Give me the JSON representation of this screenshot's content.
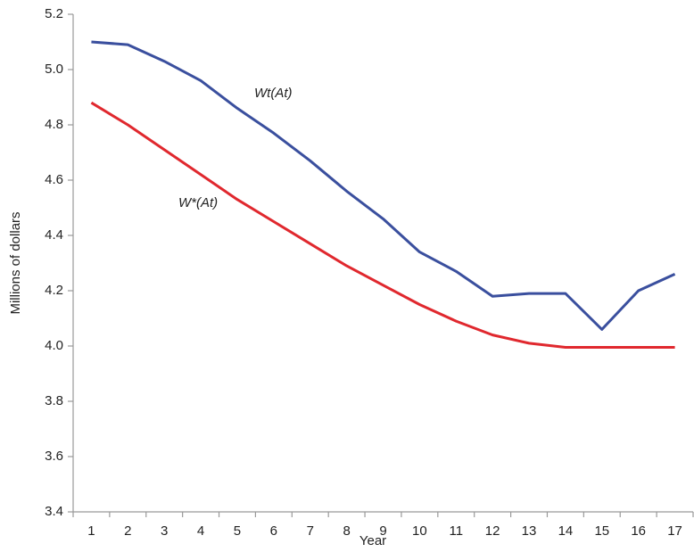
{
  "chart_data": {
    "type": "line",
    "x_label": "Year",
    "y_label": "Millions of dollars",
    "categories": [
      "1",
      "2",
      "3",
      "4",
      "5",
      "6",
      "7",
      "8",
      "9",
      "10",
      "11",
      "12",
      "13",
      "14",
      "15",
      "16",
      "17"
    ],
    "series": [
      {
        "name": "Wt(At)",
        "color": "#3a4f9e",
        "values": [
          5.1,
          5.09,
          5.03,
          4.96,
          4.86,
          4.77,
          4.67,
          4.56,
          4.46,
          4.34,
          4.27,
          4.18,
          4.19,
          4.19,
          4.06,
          4.2,
          4.26
        ]
      },
      {
        "name": "W*(At)",
        "color": "#e0282e",
        "values": [
          4.88,
          4.8,
          4.71,
          4.62,
          4.53,
          4.45,
          4.37,
          4.29,
          4.22,
          4.15,
          4.09,
          4.04,
          4.01,
          3.995,
          3.995,
          3.995,
          3.995
        ]
      }
    ],
    "ylim": [
      3.4,
      5.2
    ],
    "yticks": [
      3.4,
      3.6,
      3.8,
      {
        "value": 4,
        "label": "4.0"
      },
      4.2,
      4.4,
      4.6,
      4.8,
      {
        "value": 5,
        "label": "5.0"
      },
      5.2
    ],
    "grid": false
  }
}
